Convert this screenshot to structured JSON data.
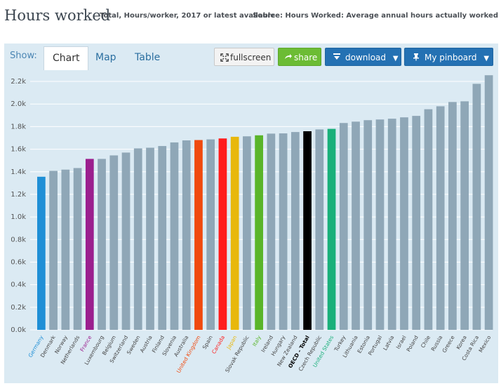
{
  "header": {
    "title": "Hours worked",
    "subtitle": "Total, Hours/worker, 2017 or latest available",
    "source": "Source: Hours Worked: Average annual hours actually worked"
  },
  "toolbar": {
    "show_label": "Show:",
    "tabs": [
      "Chart",
      "Map",
      "Table"
    ],
    "fullscreen_label": "fullscreen",
    "share_label": "share",
    "download_label": "download",
    "pinboard_label": "My pinboard"
  },
  "colors": {
    "default_bar": "#8fa7b7",
    "germany": "#1f8fd6",
    "france": "#9b1f8e",
    "united_kingdom": "#f04a0f",
    "canada": "#ff1c1c",
    "japan": "#e8b80c",
    "italy": "#5ab52a",
    "oecd": "#000000",
    "united_states": "#19b07a"
  },
  "chart_data": {
    "type": "bar",
    "title": "Hours worked",
    "xlabel": "",
    "ylabel": "",
    "ylim": [
      0,
      2250
    ],
    "yticks": [
      0,
      200,
      400,
      600,
      800,
      1000,
      1200,
      1400,
      1600,
      1800,
      2000,
      2200
    ],
    "ytick_labels": [
      "0.0k",
      "0.2k",
      "0.4k",
      "0.6k",
      "0.8k",
      "1.0k",
      "1.2k",
      "1.4k",
      "1.6k",
      "1.8k",
      "2.0k",
      "2.2k"
    ],
    "categories": [
      "Germany",
      "Denmark",
      "Norway",
      "Netherlands",
      "France",
      "Luxembourg",
      "Belgium",
      "Switzerland",
      "Sweden",
      "Austria",
      "Finland",
      "Slovenia",
      "Australia",
      "United Kingdom",
      "Spain",
      "Canada",
      "Japan",
      "Slovak Republic",
      "Italy",
      "Ireland",
      "Hungary",
      "New Zealand",
      "OECD - Total",
      "Czech Republic",
      "United States",
      "Turkey",
      "Lithuania",
      "Estonia",
      "Portugal",
      "Latvia",
      "Israel",
      "Poland",
      "Chile",
      "Russia",
      "Greece",
      "Korea",
      "Costa Rica",
      "Mexico"
    ],
    "values": [
      1356,
      1408,
      1419,
      1433,
      1514,
      1514,
      1545,
      1570,
      1607,
      1613,
      1628,
      1660,
      1678,
      1681,
      1687,
      1695,
      1710,
      1714,
      1723,
      1738,
      1740,
      1752,
      1759,
      1775,
      1780,
      1832,
      1844,
      1857,
      1863,
      1870,
      1882,
      1895,
      1954,
      1980,
      2018,
      2024,
      2179,
      2255
    ],
    "highlighted": {
      "Germany": "germany",
      "France": "france",
      "United Kingdom": "united_kingdom",
      "Canada": "canada",
      "Japan": "japan",
      "Italy": "italy",
      "OECD - Total": "oecd",
      "United States": "united_states"
    }
  }
}
